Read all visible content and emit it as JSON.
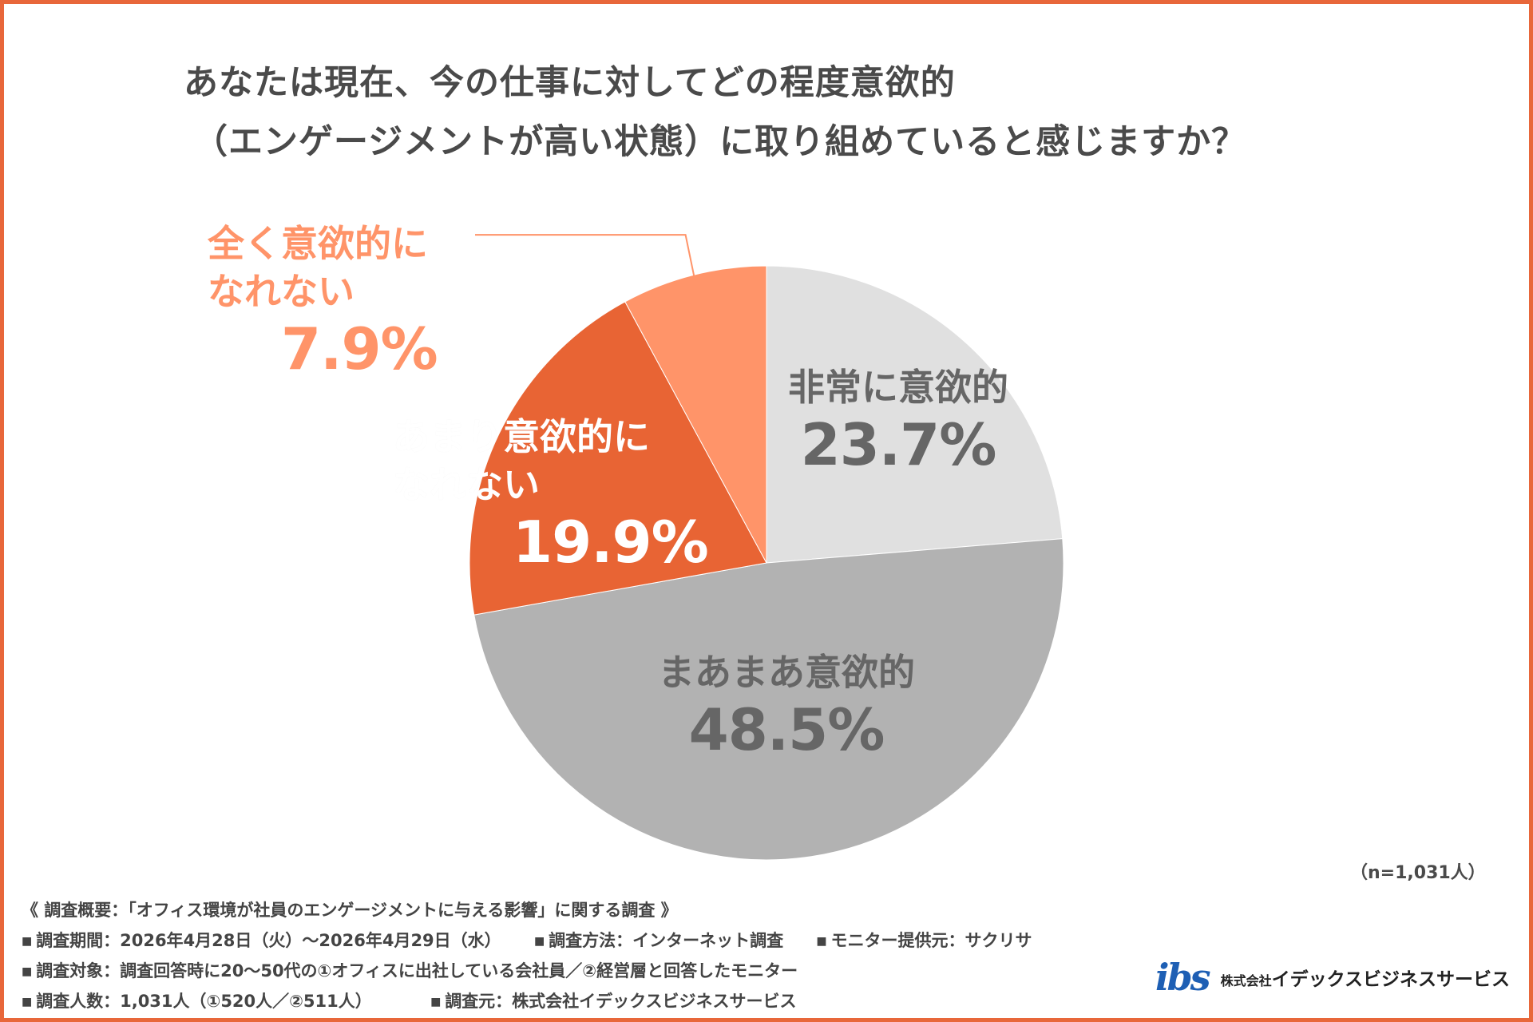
{
  "title": {
    "line1": "あなたは現在、今の仕事に対してどの程度意欲的",
    "line2": "（エンゲージメントが高い状態）に取り組めていると感じますか？"
  },
  "chart_data": {
    "type": "pie",
    "unit": "%",
    "slices": [
      {
        "label": "非常に意欲的",
        "label_lines": [
          "非常に意欲的"
        ],
        "value": 23.7,
        "display": "23.7%",
        "color": "#e0e0e0",
        "text_color": "#666666"
      },
      {
        "label": "まあまあ意欲的",
        "label_lines": [
          "まあまあ意欲的"
        ],
        "value": 48.5,
        "display": "48.5%",
        "color": "#b2b2b2",
        "text_color": "#666666"
      },
      {
        "label": "あまり意欲的になれない",
        "label_lines": [
          "あまり意欲的に",
          "なれない"
        ],
        "value": 19.9,
        "display": "19.9%",
        "color": "#e86434",
        "text_color": "#ffffff"
      },
      {
        "label": "全く意欲的になれない",
        "label_lines": [
          "全く意欲的に",
          "なれない"
        ],
        "value": 7.9,
        "display": "7.9%",
        "color": "#ff9469",
        "text_color": "#ff9469"
      }
    ],
    "start": "12 o'clock",
    "direction": "clockwise",
    "n_note": "（n=1,031人）"
  },
  "survey_notes": {
    "header": "《 調査概要：「オフィス環境が社員のエンゲージメントに与える影響」に関する調査 》",
    "period": "調査期間：2026年4月28日（火）～2026年4月29日（水）",
    "method": "調査方法：インターネット調査",
    "panel": "モニター提供元：サクリサ",
    "target": "調査対象：調査回答時に20～50代の①オフィスに出社している会社員／②経営層と回答したモニター",
    "count": "調査人数：1,031人（①520人／②511人）",
    "source": "調査元：株式会社イデックスビジネスサービス"
  },
  "logo": {
    "mark": "ibs",
    "company_prefix": "株式会社",
    "company_name": "イデックスビジネスサービス",
    "colors": {
      "mark": "#1e5fb4",
      "accent": "#e8673a"
    }
  },
  "colors": {
    "frame": "#e8673a",
    "title": "#4a4a4a"
  }
}
